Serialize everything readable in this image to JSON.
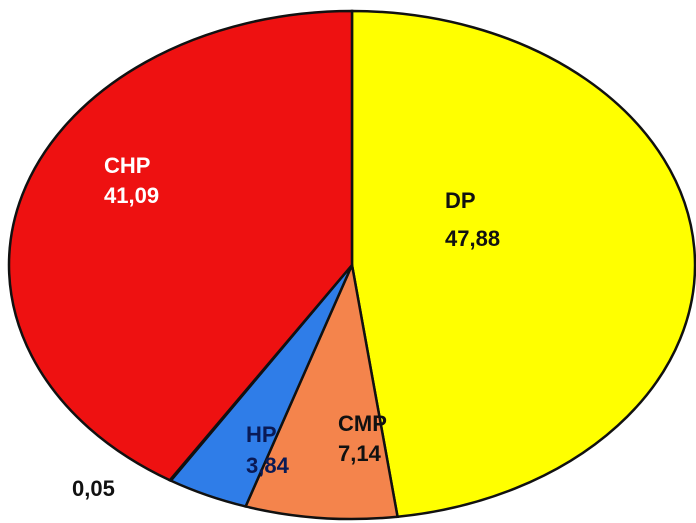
{
  "chart_data": {
    "type": "pie",
    "categories": [
      "DP",
      "CMP",
      "HP",
      null,
      "CHP"
    ],
    "values": [
      47.88,
      7.14,
      3.84,
      0.05,
      41.09
    ],
    "value_labels": [
      "47,88",
      "7,14",
      "3,84",
      "0,05",
      "41,09"
    ],
    "colors": [
      "#ffff00",
      "#f4844c",
      "#2f7de8",
      "#ffffff",
      "#ee1111"
    ]
  }
}
